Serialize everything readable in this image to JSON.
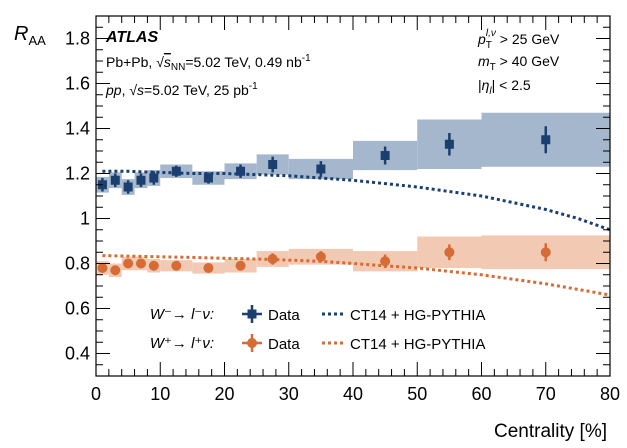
{
  "chart_data": {
    "type": "scatter",
    "experiment": "ATLAS",
    "info_left": [
      "Pb+Pb, √s_NN=5.02 TeV, 0.49 nb⁻¹",
      "pp, √s=5.02 TeV, 25 pb⁻¹"
    ],
    "info_right": [
      "p_T^{l,ν} > 25 GeV",
      "m_T > 40 GeV",
      "|η_l| < 2.5"
    ],
    "xlabel": "Centrality [%]",
    "ylabel": "R_AA",
    "xlim": [
      0,
      80
    ],
    "ylim": [
      0.3,
      1.9
    ],
    "xticks": [
      0,
      10,
      20,
      30,
      40,
      50,
      60,
      70,
      80
    ],
    "yticks": [
      0.4,
      0.6,
      0.8,
      1,
      1.2,
      1.4,
      1.6,
      1.8
    ],
    "ytick_labels": [
      "0.4",
      "0.6",
      "0.8",
      "1",
      "1.2",
      "1.4",
      "1.6",
      "1.8"
    ],
    "series": [
      {
        "name": "W⁻→ l⁻ν",
        "legend_prefix": "W⁻→ l⁻ν:",
        "data_label": "Data",
        "model_label": "CT14 + HG-PYTHIA",
        "color": "#1b3f6e",
        "band_color": "#a4b7cd",
        "marker": "square",
        "points": [
          {
            "x": 1,
            "xlo": 0,
            "xhi": 2,
            "y": 1.15,
            "stat": 0.03,
            "sys": 0.035
          },
          {
            "x": 3,
            "xlo": 2,
            "xhi": 4,
            "y": 1.17,
            "stat": 0.03,
            "sys": 0.035
          },
          {
            "x": 5,
            "xlo": 4,
            "xhi": 6,
            "y": 1.14,
            "stat": 0.03,
            "sys": 0.035
          },
          {
            "x": 7,
            "xlo": 6,
            "xhi": 8,
            "y": 1.17,
            "stat": 0.03,
            "sys": 0.035
          },
          {
            "x": 9,
            "xlo": 8,
            "xhi": 10,
            "y": 1.18,
            "stat": 0.03,
            "sys": 0.035
          },
          {
            "x": 12.5,
            "xlo": 10,
            "xhi": 15,
            "y": 1.21,
            "stat": 0.025,
            "sys": 0.03
          },
          {
            "x": 17.5,
            "xlo": 15,
            "xhi": 20,
            "y": 1.18,
            "stat": 0.025,
            "sys": 0.03
          },
          {
            "x": 22.5,
            "xlo": 20,
            "xhi": 25,
            "y": 1.21,
            "stat": 0.03,
            "sys": 0.035
          },
          {
            "x": 27.5,
            "xlo": 25,
            "xhi": 30,
            "y": 1.24,
            "stat": 0.035,
            "sys": 0.045
          },
          {
            "x": 35,
            "xlo": 30,
            "xhi": 40,
            "y": 1.22,
            "stat": 0.035,
            "sys": 0.045
          },
          {
            "x": 45,
            "xlo": 40,
            "xhi": 50,
            "y": 1.28,
            "stat": 0.04,
            "sys": 0.065
          },
          {
            "x": 55,
            "xlo": 50,
            "xhi": 60,
            "y": 1.33,
            "stat": 0.05,
            "sys": 0.11
          },
          {
            "x": 70,
            "xlo": 60,
            "xhi": 80,
            "y": 1.35,
            "stat": 0.06,
            "sys": 0.12
          }
        ],
        "model": {
          "x": [
            1,
            5,
            10,
            15,
            20,
            25,
            30,
            35,
            40,
            45,
            50,
            55,
            60,
            65,
            70,
            75,
            80
          ],
          "y": [
            1.21,
            1.21,
            1.205,
            1.2,
            1.2,
            1.195,
            1.19,
            1.18,
            1.17,
            1.155,
            1.14,
            1.12,
            1.1,
            1.07,
            1.04,
            1.0,
            0.95
          ]
        }
      },
      {
        "name": "W⁺→ l⁺ν",
        "legend_prefix": "W⁺→ l⁺ν:",
        "data_label": "Data",
        "model_label": "CT14 + HG-PYTHIA",
        "color": "#d76b36",
        "band_color": "#f2c9b3",
        "marker": "circle",
        "points": [
          {
            "x": 1,
            "xlo": 0,
            "xhi": 2,
            "y": 0.78,
            "stat": 0.02,
            "sys": 0.03
          },
          {
            "x": 3,
            "xlo": 2,
            "xhi": 4,
            "y": 0.77,
            "stat": 0.02,
            "sys": 0.03
          },
          {
            "x": 5,
            "xlo": 4,
            "xhi": 6,
            "y": 0.8,
            "stat": 0.02,
            "sys": 0.03
          },
          {
            "x": 7,
            "xlo": 6,
            "xhi": 8,
            "y": 0.8,
            "stat": 0.02,
            "sys": 0.03
          },
          {
            "x": 9,
            "xlo": 8,
            "xhi": 10,
            "y": 0.79,
            "stat": 0.02,
            "sys": 0.03
          },
          {
            "x": 12.5,
            "xlo": 10,
            "xhi": 15,
            "y": 0.79,
            "stat": 0.015,
            "sys": 0.025
          },
          {
            "x": 17.5,
            "xlo": 15,
            "xhi": 20,
            "y": 0.78,
            "stat": 0.015,
            "sys": 0.025
          },
          {
            "x": 22.5,
            "xlo": 20,
            "xhi": 25,
            "y": 0.79,
            "stat": 0.02,
            "sys": 0.03
          },
          {
            "x": 27.5,
            "xlo": 25,
            "xhi": 30,
            "y": 0.82,
            "stat": 0.025,
            "sys": 0.035
          },
          {
            "x": 35,
            "xlo": 30,
            "xhi": 40,
            "y": 0.83,
            "stat": 0.025,
            "sys": 0.035
          },
          {
            "x": 45,
            "xlo": 40,
            "xhi": 50,
            "y": 0.81,
            "stat": 0.03,
            "sys": 0.045
          },
          {
            "x": 55,
            "xlo": 50,
            "xhi": 60,
            "y": 0.85,
            "stat": 0.035,
            "sys": 0.07
          },
          {
            "x": 70,
            "xlo": 60,
            "xhi": 80,
            "y": 0.85,
            "stat": 0.04,
            "sys": 0.075
          }
        ],
        "model": {
          "x": [
            1,
            5,
            10,
            15,
            20,
            25,
            30,
            35,
            40,
            45,
            50,
            55,
            60,
            65,
            70,
            75,
            80
          ],
          "y": [
            0.835,
            0.833,
            0.83,
            0.827,
            0.823,
            0.82,
            0.815,
            0.81,
            0.8,
            0.79,
            0.78,
            0.765,
            0.75,
            0.73,
            0.71,
            0.685,
            0.66
          ]
        }
      }
    ],
    "grid": false,
    "legend_position": "bottom-left"
  }
}
